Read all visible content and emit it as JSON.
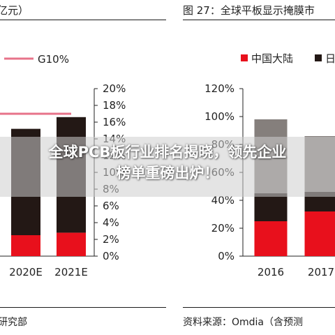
{
  "overlay": {
    "line1": "全球PCB板行业排名揭晓，领先企业",
    "line2": "榜单重磅出炉！"
  },
  "left": {
    "title_fragment": "亿元）",
    "footer_fragment": "研究部",
    "legend": {
      "label": "G10%"
    }
  },
  "right": {
    "title": "图 27：全球平板显示掩膜市",
    "footer": "资料来源：Omdia（含预测",
    "legend": [
      {
        "label": "中国大陆",
        "color": "#e8101c"
      },
      {
        "label": "日",
        "color": "#231815"
      }
    ]
  },
  "chart_data": [
    {
      "type": "bar",
      "categories": [
        "2020E",
        "2021E"
      ],
      "stacked": true,
      "series": [
        {
          "values": [
            2.5,
            2.8
          ],
          "color": "#e8101c"
        },
        {
          "values": [
            12.7,
            13.8
          ],
          "color": "#231815"
        },
        {
          "name": "G10%",
          "type": "line",
          "values": [
            17.0,
            17.0
          ],
          "color": "#e7738a"
        }
      ],
      "y_axis": {
        "side": "right",
        "ylim": [
          0,
          20
        ],
        "ticks": [
          "0%",
          "2%",
          "4%",
          "6%",
          "8%",
          "10%",
          "12%",
          "14%",
          "16%",
          "18%",
          "20%"
        ]
      },
      "grid": false
    },
    {
      "type": "bar",
      "categories": [
        "2016",
        "2017"
      ],
      "stacked": true,
      "series": [
        {
          "name": "中国大陆",
          "values": [
            25,
            32
          ],
          "color": "#e8101c"
        },
        {
          "name": "日",
          "values": [
            20,
            14
          ],
          "color": "#231815"
        },
        {
          "values": [
            53,
            40
          ],
          "color": "#857f7c"
        }
      ],
      "y_axis": {
        "side": "left",
        "ylim": [
          0,
          120
        ],
        "ticks": [
          "0%",
          "20%",
          "40%",
          "60%",
          "80%",
          "100%",
          "120%"
        ]
      },
      "grid": false
    }
  ]
}
